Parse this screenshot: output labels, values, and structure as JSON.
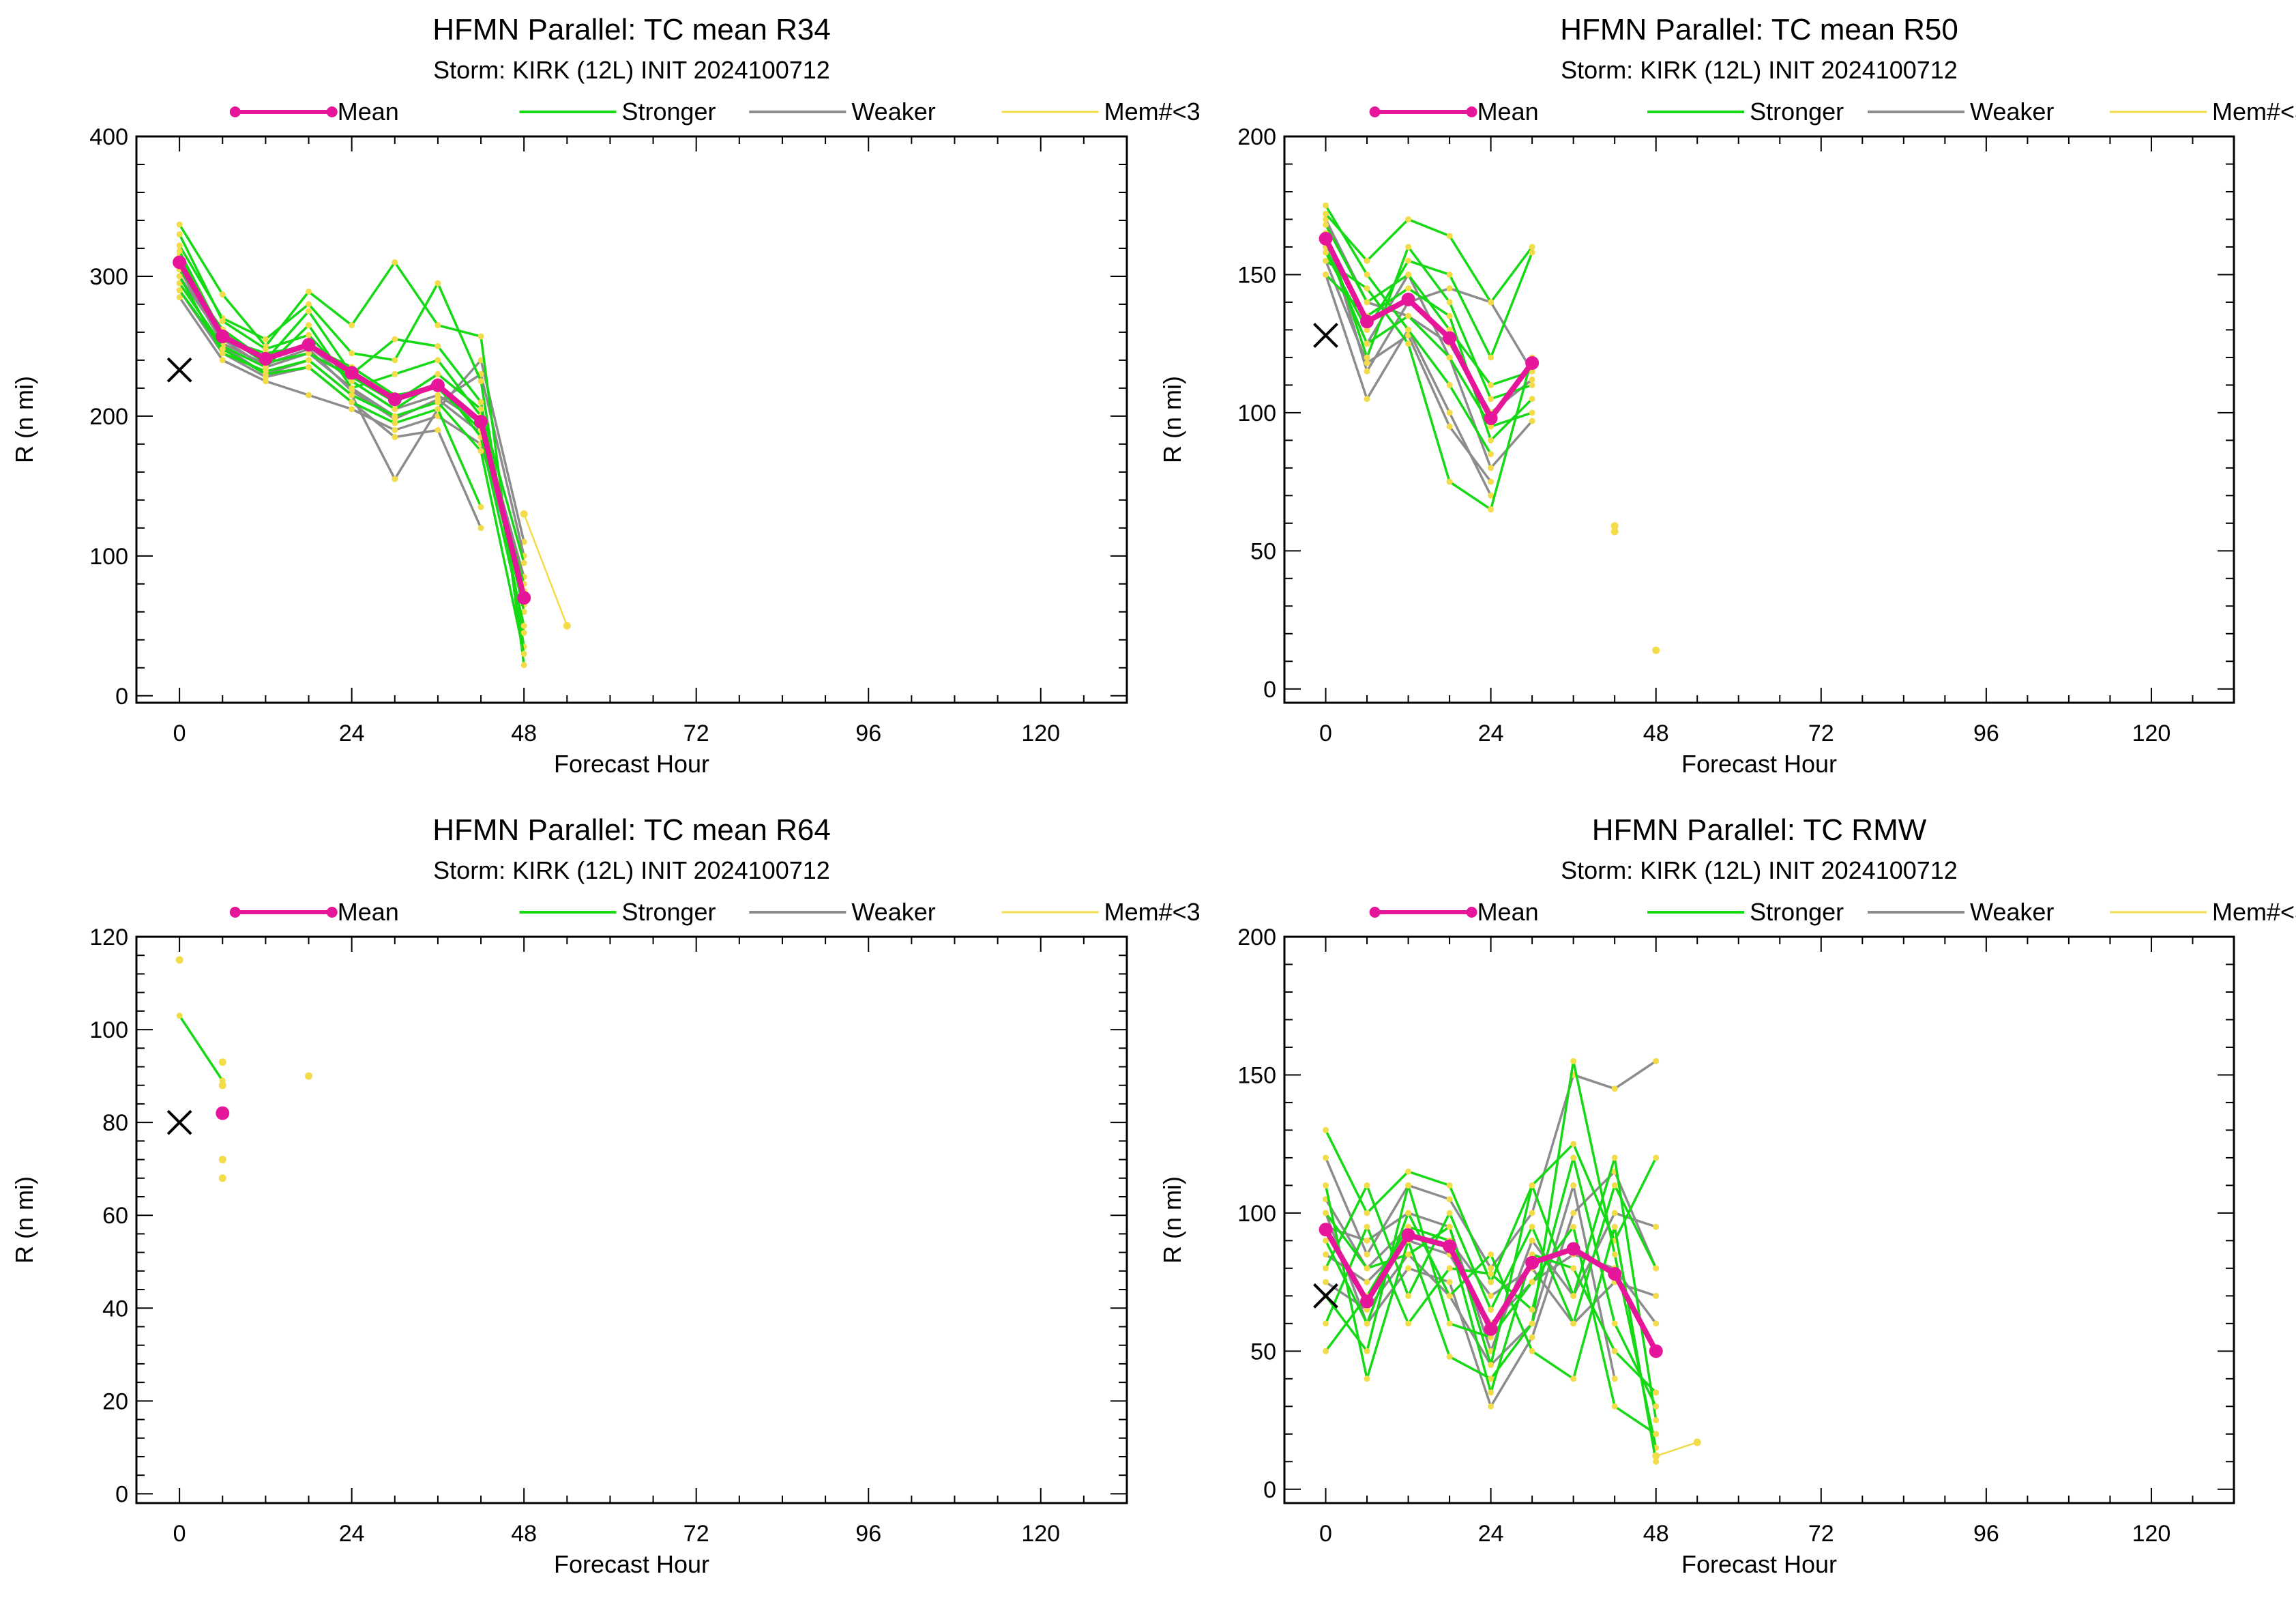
{
  "colors": {
    "mean": "#e6169b",
    "stronger": "#16d916",
    "weaker": "#8c8c8c",
    "few_members": "#f2dc4a",
    "observed": "#000000"
  },
  "legend": {
    "mean": "Mean",
    "stronger": "Stronger",
    "weaker": "Weaker",
    "few_members": "Mem#<3"
  },
  "chart_data": [
    {
      "type": "line",
      "title": "HFMN Parallel: TC mean R34",
      "subtitle": "Storm: KIRK (12L) INIT 2024100712",
      "xlabel": "Forecast Hour",
      "ylabel": "R (n mi)",
      "xlim": [
        -6,
        132
      ],
      "ylim": [
        -5,
        400
      ],
      "xticks": [
        0,
        24,
        48,
        72,
        96,
        120
      ],
      "yticks": [
        0,
        100,
        200,
        300,
        400
      ],
      "observed": {
        "x": 0,
        "y": 233
      },
      "mean": {
        "x": [
          0,
          6,
          12,
          18,
          24,
          30,
          36,
          42,
          48
        ],
        "y": [
          310,
          257,
          241,
          251,
          231,
          212,
          222,
          196,
          70
        ]
      },
      "stronger": [
        {
          "x": [
            0,
            6,
            12,
            18,
            24,
            30,
            36,
            42,
            48
          ],
          "y": [
            337,
            287,
            250,
            289,
            265,
            310,
            265,
            257,
            22
          ]
        },
        {
          "x": [
            0,
            6,
            12,
            18,
            24,
            30,
            36,
            42,
            48
          ],
          "y": [
            322,
            270,
            255,
            280,
            245,
            240,
            295,
            225,
            35
          ]
        },
        {
          "x": [
            0,
            6,
            12,
            18,
            24,
            30,
            36,
            42,
            48
          ],
          "y": [
            305,
            262,
            240,
            275,
            230,
            255,
            250,
            210,
            45
          ]
        },
        {
          "x": [
            0,
            6,
            12,
            18,
            24,
            30,
            36,
            42,
            48
          ],
          "y": [
            295,
            250,
            235,
            265,
            220,
            230,
            240,
            200,
            60
          ]
        },
        {
          "x": [
            0,
            6,
            12,
            18,
            24,
            30,
            36,
            42,
            48
          ],
          "y": [
            315,
            255,
            245,
            250,
            235,
            215,
            220,
            190,
            80
          ]
        },
        {
          "x": [
            0,
            6,
            12,
            18,
            24,
            30,
            36,
            42,
            48
          ],
          "y": [
            330,
            268,
            248,
            258,
            225,
            205,
            225,
            185,
            50
          ]
        },
        {
          "x": [
            0,
            6,
            12,
            18,
            24,
            30,
            36,
            42,
            48
          ],
          "y": [
            300,
            245,
            232,
            240,
            215,
            200,
            210,
            175,
            30
          ]
        },
        {
          "x": [
            0,
            6,
            12,
            18,
            24,
            30,
            36,
            42,
            48
          ],
          "y": [
            318,
            258,
            238,
            245,
            228,
            210,
            230,
            205,
            95
          ]
        },
        {
          "x": [
            0,
            6,
            12,
            18,
            24,
            30,
            36,
            42
          ],
          "y": [
            290,
            248,
            230,
            235,
            210,
            195,
            205,
            135
          ]
        }
      ],
      "weaker": [
        {
          "x": [
            0,
            6,
            12,
            18,
            24,
            30,
            36,
            42,
            48
          ],
          "y": [
            295,
            250,
            230,
            240,
            215,
            155,
            205,
            240,
            110
          ]
        },
        {
          "x": [
            0,
            6,
            12,
            18,
            24,
            30,
            36,
            42,
            48
          ],
          "y": [
            300,
            255,
            235,
            245,
            220,
            200,
            210,
            230,
            100
          ]
        },
        {
          "x": [
            0,
            6,
            12,
            18,
            24,
            30,
            36,
            42,
            48
          ],
          "y": [
            285,
            240,
            225,
            215,
            205,
            190,
            200,
            180,
            75
          ]
        },
        {
          "x": [
            0,
            6,
            12,
            18,
            24,
            30,
            36,
            42,
            48
          ],
          "y": [
            310,
            260,
            240,
            250,
            225,
            205,
            215,
            195,
            85
          ]
        },
        {
          "x": [
            0,
            6,
            12,
            18,
            24,
            30,
            36,
            42
          ],
          "y": [
            290,
            245,
            228,
            235,
            210,
            185,
            190,
            120
          ]
        },
        {
          "x": [
            0,
            6,
            12,
            18,
            24,
            30,
            36,
            42,
            48
          ],
          "y": [
            305,
            252,
            237,
            248,
            218,
            198,
            212,
            188,
            65
          ]
        }
      ],
      "few_members": [
        {
          "x": [
            48,
            54
          ],
          "y": [
            130,
            50
          ]
        }
      ]
    },
    {
      "type": "line",
      "title": "HFMN Parallel: TC mean R50",
      "subtitle": "Storm: KIRK (12L) INIT 2024100712",
      "xlabel": "Forecast Hour",
      "ylabel": "R (n mi)",
      "xlim": [
        -6,
        132
      ],
      "ylim": [
        -5,
        200
      ],
      "xticks": [
        0,
        24,
        48,
        72,
        96,
        120
      ],
      "yticks": [
        0,
        50,
        100,
        150,
        200
      ],
      "observed": {
        "x": 0,
        "y": 128
      },
      "mean": {
        "x": [
          0,
          6,
          12,
          18,
          24,
          30
        ],
        "y": [
          163,
          133,
          141,
          127,
          98,
          118
        ]
      },
      "stronger": [
        {
          "x": [
            0,
            6,
            12,
            18,
            24,
            30
          ],
          "y": [
            172,
            155,
            170,
            164,
            140,
            160
          ]
        },
        {
          "x": [
            0,
            6,
            12,
            18,
            24,
            30
          ],
          "y": [
            168,
            140,
            150,
            130,
            110,
            115
          ]
        },
        {
          "x": [
            0,
            6,
            12,
            18,
            24,
            30
          ],
          "y": [
            160,
            125,
            135,
            120,
            95,
            100
          ]
        },
        {
          "x": [
            0,
            6,
            12,
            18,
            24,
            30
          ],
          "y": [
            155,
            145,
            125,
            75,
            65,
            120
          ]
        },
        {
          "x": [
            0,
            6,
            12,
            18,
            24,
            30
          ],
          "y": [
            165,
            120,
            160,
            140,
            105,
            110
          ]
        },
        {
          "x": [
            0,
            6,
            12,
            18,
            24,
            30
          ],
          "y": [
            150,
            135,
            145,
            135,
            90,
            105
          ]
        },
        {
          "x": [
            0,
            6,
            12,
            18,
            24
          ],
          "y": [
            175,
            150,
            130,
            110,
            85
          ]
        },
        {
          "x": [
            0,
            6,
            12,
            18,
            24,
            30
          ],
          "y": [
            158,
            130,
            155,
            150,
            120,
            158
          ]
        }
      ],
      "weaker": [
        {
          "x": [
            0,
            6,
            12,
            18,
            24,
            30
          ],
          "y": [
            165,
            115,
            140,
            145,
            140,
            115
          ]
        },
        {
          "x": [
            0,
            6,
            12,
            18,
            24
          ],
          "y": [
            150,
            105,
            130,
            100,
            70
          ]
        },
        {
          "x": [
            0,
            6,
            12,
            18,
            24,
            30
          ],
          "y": [
            160,
            125,
            150,
            120,
            80,
            97
          ]
        },
        {
          "x": [
            0,
            6,
            12,
            18,
            24,
            30
          ],
          "y": [
            170,
            140,
            135,
            125,
            100,
            112
          ]
        },
        {
          "x": [
            0,
            6,
            12,
            18,
            24
          ],
          "y": [
            155,
            118,
            128,
            95,
            75
          ]
        }
      ],
      "few_members": [
        {
          "x": [
            42,
            42
          ],
          "y": [
            59,
            57
          ]
        },
        {
          "x": [
            48
          ],
          "y": [
            14
          ]
        }
      ]
    },
    {
      "type": "line",
      "title": "HFMN Parallel: TC mean R64",
      "subtitle": "Storm: KIRK (12L) INIT 2024100712",
      "xlabel": "Forecast Hour",
      "ylabel": "R (n mi)",
      "xlim": [
        -6,
        132
      ],
      "ylim": [
        -2,
        120
      ],
      "xticks": [
        0,
        24,
        48,
        72,
        96,
        120
      ],
      "yticks": [
        0,
        20,
        40,
        60,
        80,
        100,
        120
      ],
      "observed": {
        "x": 0,
        "y": 80
      },
      "mean": {
        "x": [
          6
        ],
        "y": [
          82
        ]
      },
      "stronger": [
        {
          "x": [
            0,
            6
          ],
          "y": [
            103,
            89
          ]
        }
      ],
      "weaker": [],
      "few_members": [
        {
          "x": [
            0
          ],
          "y": [
            115
          ]
        },
        {
          "x": [
            6
          ],
          "y": [
            93
          ]
        },
        {
          "x": [
            6
          ],
          "y": [
            88
          ]
        },
        {
          "x": [
            6
          ],
          "y": [
            72
          ]
        },
        {
          "x": [
            6
          ],
          "y": [
            68
          ]
        },
        {
          "x": [
            18
          ],
          "y": [
            90
          ]
        }
      ]
    },
    {
      "type": "line",
      "title": "HFMN Parallel: TC RMW",
      "subtitle": "Storm: KIRK (12L) INIT 2024100712",
      "xlabel": "Forecast Hour",
      "ylabel": "R (n mi)",
      "xlim": [
        -6,
        132
      ],
      "ylim": [
        -5,
        200
      ],
      "xticks": [
        0,
        24,
        48,
        72,
        96,
        120
      ],
      "yticks": [
        0,
        50,
        100,
        150,
        200
      ],
      "observed": {
        "x": 0,
        "y": 70
      },
      "mean": {
        "x": [
          0,
          6,
          12,
          18,
          24,
          30,
          36,
          42,
          48
        ],
        "y": [
          94,
          68,
          92,
          88,
          58,
          82,
          87,
          78,
          50
        ]
      },
      "stronger": [
        {
          "x": [
            0,
            6,
            12,
            18,
            24,
            30,
            36,
            42,
            48
          ],
          "y": [
            130,
            100,
            115,
            110,
            75,
            110,
            125,
            90,
            120
          ]
        },
        {
          "x": [
            0,
            6,
            12,
            18,
            24,
            30,
            36,
            42,
            48
          ],
          "y": [
            110,
            40,
            90,
            48,
            40,
            60,
            155,
            85,
            15
          ]
        },
        {
          "x": [
            0,
            6,
            12,
            18,
            24,
            30,
            36,
            42,
            48
          ],
          "y": [
            100,
            80,
            85,
            95,
            45,
            110,
            70,
            120,
            25
          ]
        },
        {
          "x": [
            0,
            6,
            12,
            18,
            24,
            30,
            36,
            42,
            48
          ],
          "y": [
            90,
            60,
            100,
            70,
            85,
            50,
            40,
            95,
            10
          ]
        },
        {
          "x": [
            0,
            6,
            12,
            18,
            24,
            30,
            36,
            42,
            48
          ],
          "y": [
            80,
            110,
            70,
            100,
            65,
            95,
            60,
            110,
            80
          ]
        },
        {
          "x": [
            0,
            6,
            12,
            18,
            24,
            30,
            36,
            42,
            48
          ],
          "y": [
            70,
            50,
            110,
            60,
            55,
            75,
            95,
            30,
            20
          ]
        },
        {
          "x": [
            0,
            6,
            12,
            18,
            24,
            30,
            36,
            42,
            48
          ],
          "y": [
            60,
            95,
            60,
            80,
            78,
            65,
            120,
            60,
            30
          ]
        },
        {
          "x": [
            0,
            6,
            12,
            18,
            24,
            30,
            36,
            42,
            48
          ],
          "y": [
            50,
            70,
            95,
            90,
            35,
            85,
            80,
            50,
            35
          ]
        }
      ],
      "weaker": [
        {
          "x": [
            0,
            6,
            12,
            18,
            24,
            30,
            36,
            42,
            48
          ],
          "y": [
            120,
            85,
            110,
            105,
            80,
            100,
            150,
            145,
            155
          ]
        },
        {
          "x": [
            0,
            6,
            12,
            18,
            24,
            30,
            36,
            42,
            48
          ],
          "y": [
            100,
            60,
            80,
            75,
            30,
            55,
            100,
            115,
            80
          ]
        },
        {
          "x": [
            0,
            6,
            12,
            18,
            24,
            30,
            36,
            42,
            48
          ],
          "y": [
            85,
            75,
            90,
            85,
            60,
            75,
            85,
            80,
            60
          ]
        },
        {
          "x": [
            0,
            6,
            12,
            18,
            24,
            30,
            36,
            42,
            48
          ],
          "y": [
            95,
            90,
            100,
            95,
            50,
            90,
            70,
            100,
            95
          ]
        },
        {
          "x": [
            0,
            6,
            12,
            18,
            24,
            30,
            36,
            42
          ],
          "y": [
            75,
            65,
            85,
            70,
            45,
            60,
            110,
            40
          ]
        },
        {
          "x": [
            0,
            6,
            12,
            18,
            24,
            30,
            36,
            42,
            48
          ],
          "y": [
            105,
            80,
            95,
            90,
            70,
            80,
            60,
            75,
            70
          ]
        }
      ],
      "few_members": [
        {
          "x": [
            48,
            54
          ],
          "y": [
            12,
            17
          ]
        }
      ]
    }
  ]
}
